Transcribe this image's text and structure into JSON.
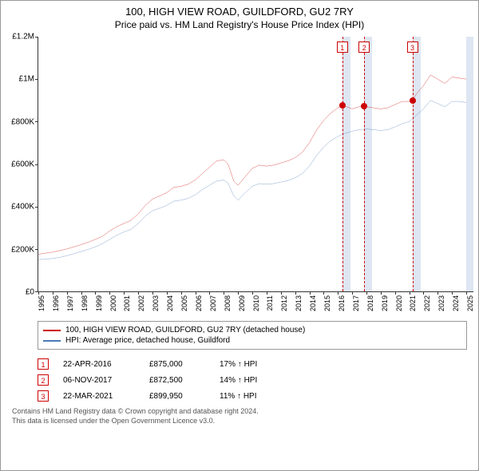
{
  "title": "100, HIGH VIEW ROAD, GUILDFORD, GU2 7RY",
  "subtitle": "Price paid vs. HM Land Registry's House Price Index (HPI)",
  "chart": {
    "type": "line",
    "background_color": "#ffffff",
    "axis_color": "#333333",
    "title_fontsize": 13,
    "subtitle_fontsize": 12,
    "tick_fontsize": 10,
    "ylim": [
      0,
      1200000
    ],
    "ytick_step": 200000,
    "yticks": [
      "£0",
      "£200K",
      "£400K",
      "£600K",
      "£800K",
      "£1M",
      "£1.2M"
    ],
    "xlim": [
      1995,
      2025.5
    ],
    "xticks": [
      1995,
      1996,
      1997,
      1998,
      1999,
      2000,
      2001,
      2002,
      2003,
      2004,
      2005,
      2006,
      2007,
      2008,
      2009,
      2010,
      2011,
      2012,
      2013,
      2014,
      2015,
      2016,
      2017,
      2018,
      2019,
      2020,
      2021,
      2022,
      2023,
      2024,
      2025
    ],
    "marker_band_color": "#dde6f2",
    "marker_line_color": "#cc0000",
    "marker_line_dash": "3,3",
    "series": [
      {
        "name": "100, HIGH VIEW ROAD, GUILDFORD, GU2 7RY (detached house)",
        "color": "#cc0000",
        "line_width": 1.2,
        "points": [
          [
            1995.0,
            175000
          ],
          [
            1995.5,
            180000
          ],
          [
            1996.0,
            185000
          ],
          [
            1996.5,
            192000
          ],
          [
            1997.0,
            200000
          ],
          [
            1997.5,
            210000
          ],
          [
            1998.0,
            220000
          ],
          [
            1998.5,
            232000
          ],
          [
            1999.0,
            245000
          ],
          [
            1999.5,
            260000
          ],
          [
            2000.0,
            285000
          ],
          [
            2000.5,
            305000
          ],
          [
            2001.0,
            320000
          ],
          [
            2001.5,
            335000
          ],
          [
            2002.0,
            365000
          ],
          [
            2002.5,
            405000
          ],
          [
            2003.0,
            435000
          ],
          [
            2003.5,
            450000
          ],
          [
            2004.0,
            465000
          ],
          [
            2004.5,
            490000
          ],
          [
            2005.0,
            495000
          ],
          [
            2005.5,
            505000
          ],
          [
            2006.0,
            525000
          ],
          [
            2006.5,
            555000
          ],
          [
            2007.0,
            585000
          ],
          [
            2007.5,
            615000
          ],
          [
            2008.0,
            620000
          ],
          [
            2008.3,
            600000
          ],
          [
            2008.7,
            520000
          ],
          [
            2009.0,
            500000
          ],
          [
            2009.5,
            540000
          ],
          [
            2010.0,
            580000
          ],
          [
            2010.5,
            595000
          ],
          [
            2011.0,
            590000
          ],
          [
            2011.5,
            595000
          ],
          [
            2012.0,
            605000
          ],
          [
            2012.5,
            615000
          ],
          [
            2013.0,
            630000
          ],
          [
            2013.5,
            655000
          ],
          [
            2014.0,
            700000
          ],
          [
            2014.5,
            760000
          ],
          [
            2015.0,
            805000
          ],
          [
            2015.5,
            840000
          ],
          [
            2016.0,
            865000
          ],
          [
            2016.3,
            875000
          ],
          [
            2016.6,
            870000
          ],
          [
            2017.0,
            860000
          ],
          [
            2017.5,
            870000
          ],
          [
            2017.85,
            872500
          ],
          [
            2018.0,
            870000
          ],
          [
            2018.5,
            865000
          ],
          [
            2019.0,
            860000
          ],
          [
            2019.5,
            865000
          ],
          [
            2020.0,
            880000
          ],
          [
            2020.5,
            895000
          ],
          [
            2021.0,
            895000
          ],
          [
            2021.22,
            899950
          ],
          [
            2021.5,
            930000
          ],
          [
            2022.0,
            970000
          ],
          [
            2022.5,
            1020000
          ],
          [
            2023.0,
            1000000
          ],
          [
            2023.5,
            980000
          ],
          [
            2024.0,
            1010000
          ],
          [
            2024.5,
            1005000
          ],
          [
            2025.0,
            1000000
          ]
        ]
      },
      {
        "name": "HPI: Average price, detached house, Guildford",
        "color": "#4a7ab8",
        "line_width": 1.2,
        "points": [
          [
            1995.0,
            150000
          ],
          [
            1995.5,
            152000
          ],
          [
            1996.0,
            155000
          ],
          [
            1996.5,
            160000
          ],
          [
            1997.0,
            168000
          ],
          [
            1997.5,
            178000
          ],
          [
            1998.0,
            188000
          ],
          [
            1998.5,
            198000
          ],
          [
            1999.0,
            210000
          ],
          [
            1999.5,
            225000
          ],
          [
            2000.0,
            245000
          ],
          [
            2000.5,
            265000
          ],
          [
            2001.0,
            280000
          ],
          [
            2001.5,
            292000
          ],
          [
            2002.0,
            320000
          ],
          [
            2002.5,
            355000
          ],
          [
            2003.0,
            380000
          ],
          [
            2003.5,
            392000
          ],
          [
            2004.0,
            405000
          ],
          [
            2004.5,
            425000
          ],
          [
            2005.0,
            430000
          ],
          [
            2005.5,
            438000
          ],
          [
            2006.0,
            455000
          ],
          [
            2006.5,
            480000
          ],
          [
            2007.0,
            500000
          ],
          [
            2007.5,
            520000
          ],
          [
            2008.0,
            525000
          ],
          [
            2008.3,
            510000
          ],
          [
            2008.7,
            450000
          ],
          [
            2009.0,
            430000
          ],
          [
            2009.5,
            465000
          ],
          [
            2010.0,
            495000
          ],
          [
            2010.5,
            508000
          ],
          [
            2011.0,
            505000
          ],
          [
            2011.5,
            508000
          ],
          [
            2012.0,
            515000
          ],
          [
            2012.5,
            522000
          ],
          [
            2013.0,
            535000
          ],
          [
            2013.5,
            555000
          ],
          [
            2014.0,
            590000
          ],
          [
            2014.5,
            640000
          ],
          [
            2015.0,
            680000
          ],
          [
            2015.5,
            710000
          ],
          [
            2016.0,
            730000
          ],
          [
            2016.5,
            745000
          ],
          [
            2017.0,
            755000
          ],
          [
            2017.5,
            762000
          ],
          [
            2018.0,
            765000
          ],
          [
            2018.5,
            762000
          ],
          [
            2019.0,
            758000
          ],
          [
            2019.5,
            762000
          ],
          [
            2020.0,
            775000
          ],
          [
            2020.5,
            790000
          ],
          [
            2021.0,
            800000
          ],
          [
            2021.5,
            830000
          ],
          [
            2022.0,
            860000
          ],
          [
            2022.5,
            900000
          ],
          [
            2023.0,
            885000
          ],
          [
            2023.5,
            870000
          ],
          [
            2024.0,
            895000
          ],
          [
            2024.5,
            895000
          ],
          [
            2025.0,
            890000
          ]
        ]
      }
    ],
    "sale_markers": [
      {
        "num": "1",
        "x": 2016.31,
        "y": 875000,
        "band_end": 2016.9
      },
      {
        "num": "2",
        "x": 2017.85,
        "y": 872500,
        "band_end": 2018.4
      },
      {
        "num": "3",
        "x": 2021.22,
        "y": 899950,
        "band_end": 2021.8
      }
    ],
    "end_band": {
      "start": 2025.0,
      "end": 2025.5
    }
  },
  "legend": {
    "items": [
      {
        "label": "100, HIGH VIEW ROAD, GUILDFORD, GU2 7RY (detached house)",
        "color": "#cc0000"
      },
      {
        "label": "HPI: Average price, detached house, Guildford",
        "color": "#4a7ab8"
      }
    ]
  },
  "sales_table": [
    {
      "num": "1",
      "date": "22-APR-2016",
      "price": "£875,000",
      "hpi": "17% ↑ HPI"
    },
    {
      "num": "2",
      "date": "06-NOV-2017",
      "price": "£872,500",
      "hpi": "14% ↑ HPI"
    },
    {
      "num": "3",
      "date": "22-MAR-2021",
      "price": "£899,950",
      "hpi": "11% ↑ HPI"
    }
  ],
  "attribution": {
    "line1": "Contains HM Land Registry data © Crown copyright and database right 2024.",
    "line2": "This data is licensed under the Open Government Licence v3.0."
  }
}
